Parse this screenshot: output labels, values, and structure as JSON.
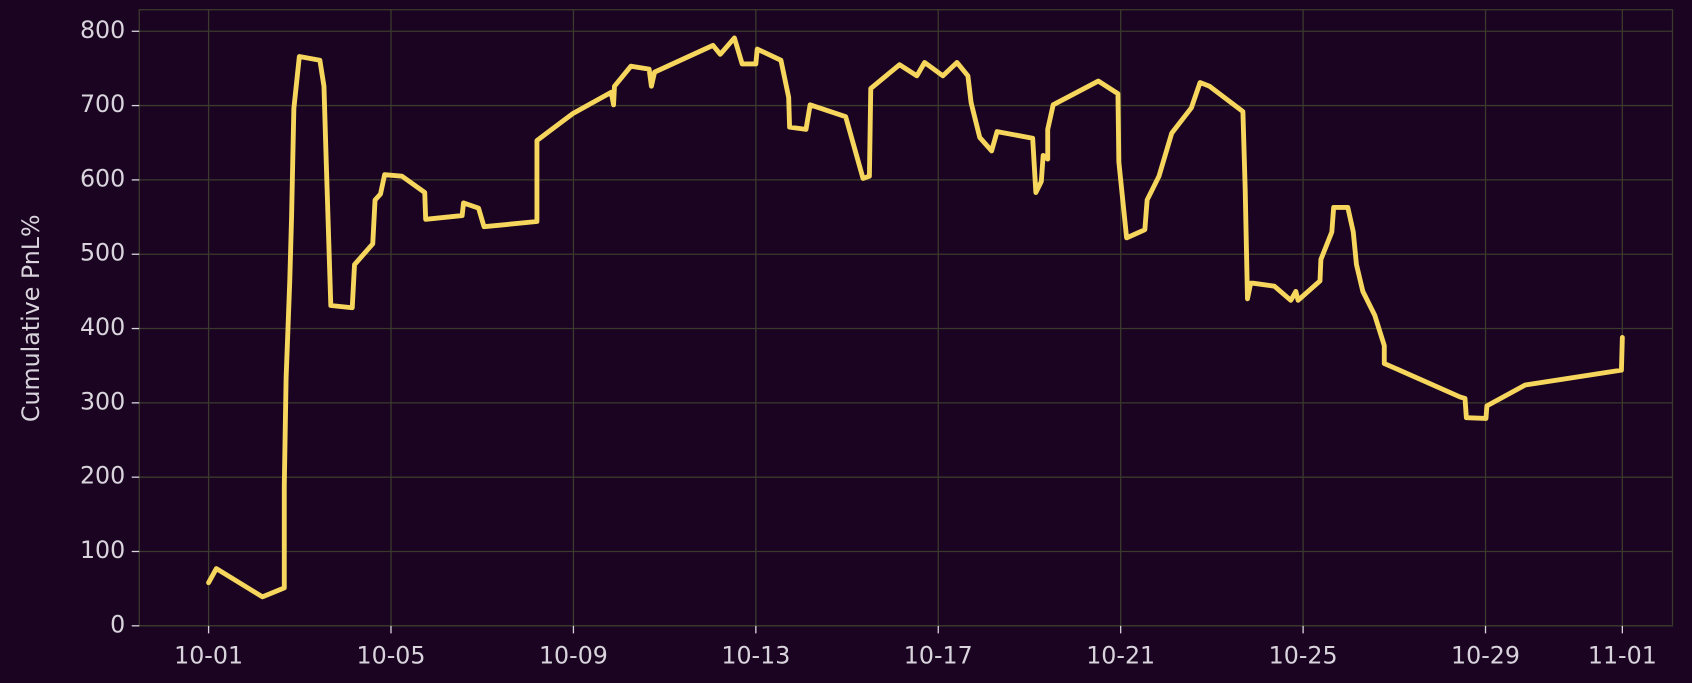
{
  "chart_data": {
    "type": "line",
    "y_label": "Cumulative PnL%",
    "x": [
      0,
      0.17,
      1.18,
      1.66,
      1.66,
      1.7,
      1.78,
      1.82,
      1.87,
      1.99,
      2.44,
      2.53,
      2.58,
      2.68,
      3.15,
      3.2,
      3.6,
      3.65,
      3.77,
      3.86,
      4.24,
      4.74,
      4.76,
      5.56,
      5.59,
      5.92,
      6.04,
      7.2,
      7.2,
      7.98,
      8.83,
      8.88,
      8.9,
      9.26,
      9.66,
      9.71,
      9.78,
      11.06,
      11.22,
      11.53,
      11.7,
      12.0,
      12.03,
      12.55,
      12.72,
      12.74,
      13.1,
      13.19,
      13.97,
      14.35,
      14.49,
      14.52,
      15.15,
      15.53,
      15.7,
      16.1,
      16.41,
      16.65,
      16.72,
      16.91,
      17.17,
      17.29,
      18.07,
      18.14,
      18.26,
      18.3,
      18.4,
      18.4,
      18.52,
      19.51,
      19.94,
      19.96,
      20.13,
      20.53,
      20.58,
      20.84,
      21.12,
      21.55,
      21.74,
      21.95,
      22.68,
      22.73,
      22.78,
      22.85,
      22.9,
      23.37,
      23.73,
      23.84,
      23.89,
      24.37,
      24.39,
      24.63,
      24.67,
      24.98,
      25.1,
      25.17,
      25.31,
      25.57,
      25.78,
      25.78,
      27.44,
      27.55,
      27.58,
      28.01,
      28.03,
      28.87,
      30.98,
      31.0
    ],
    "series": [
      {
        "color": "#f6d65c",
        "values": [
          58,
          77,
          39,
          51,
          189,
          334,
          464,
          551,
          696,
          766,
          761,
          726,
          624,
          431,
          428,
          486,
          514,
          573,
          581,
          607,
          605,
          583,
          547,
          552,
          569,
          562,
          537,
          544,
          653,
          689,
          718,
          701,
          726,
          753,
          749,
          726,
          745,
          781,
          769,
          791,
          756,
          756,
          776,
          761,
          711,
          671,
          668,
          701,
          685,
          602,
          605,
          723,
          755,
          740,
          758,
          740,
          758,
          740,
          704,
          657,
          639,
          665,
          656,
          583,
          598,
          633,
          628,
          668,
          701,
          733,
          716,
          624,
          522,
          533,
          573,
          605,
          663,
          697,
          731,
          726,
          692,
          588,
          440,
          461,
          461,
          457,
          438,
          450,
          438,
          464,
          493,
          530,
          563,
          563,
          530,
          486,
          450,
          418,
          377,
          353,
          308,
          306,
          280,
          279,
          296,
          324,
          344,
          388
        ]
      }
    ],
    "xlim": [
      -1.52,
      32.1
    ],
    "ylim": [
      0,
      829
    ],
    "xticks": [
      {
        "value": 0,
        "label": "10-01"
      },
      {
        "value": 4,
        "label": "10-05"
      },
      {
        "value": 8,
        "label": "10-09"
      },
      {
        "value": 12,
        "label": "10-13"
      },
      {
        "value": 16,
        "label": "10-17"
      },
      {
        "value": 20,
        "label": "10-21"
      },
      {
        "value": 24,
        "label": "10-25"
      },
      {
        "value": 28,
        "label": "10-29"
      },
      {
        "value": 31,
        "label": "11-01"
      }
    ],
    "yticks": [
      0,
      100,
      200,
      300,
      400,
      500,
      600,
      700,
      800
    ],
    "grid": true
  }
}
